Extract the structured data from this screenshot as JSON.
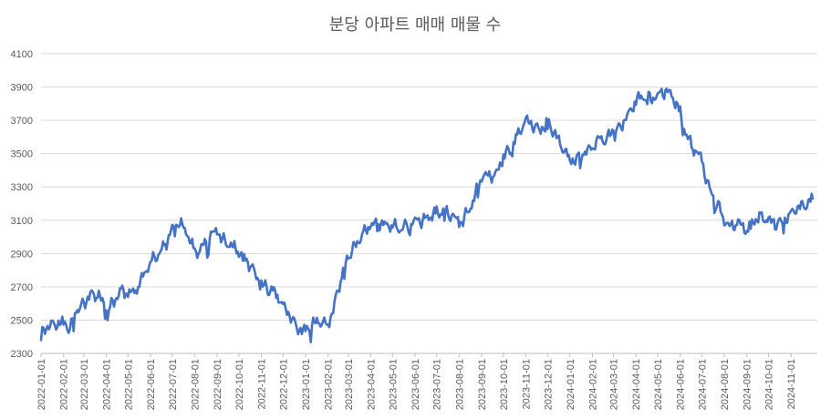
{
  "chart_data": {
    "type": "line",
    "title": "분당 아파트 매매 매물 수",
    "xlabel": "",
    "ylabel": "",
    "ylim": [
      2300,
      4100
    ],
    "yticks": [
      "2300",
      "2500",
      "2700",
      "2900",
      "3100",
      "3300",
      "3500",
      "3700",
      "3900",
      "4100"
    ],
    "grid": true,
    "legend": "none",
    "x_range": [
      "2022-01-01",
      "2024-12-01"
    ],
    "categories": [
      "2022-01-01",
      "2022-02-01",
      "2022-03-01",
      "2022-04-01",
      "2022-05-01",
      "2022-06-01",
      "2022-07-01",
      "2022-08-01",
      "2022-09-01",
      "2022-10-01",
      "2022-11-01",
      "2022-12-01",
      "2023-01-01",
      "2023-02-01",
      "2023-03-01",
      "2023-04-01",
      "2023-05-01",
      "2023-06-01",
      "2023-07-01",
      "2023-08-01",
      "2023-09-01",
      "2023-10-01",
      "2023-11-01",
      "2023-12-01",
      "2024-01-01",
      "2024-02-01",
      "2024-03-01",
      "2024-04-01",
      "2024-05-01",
      "2024-06-01",
      "2024-07-01",
      "2024-08-01",
      "2024-09-01",
      "2024-10-01",
      "2024-11-01"
    ],
    "series": [
      {
        "color": "#4472c4",
        "points": [
          [
            "2022-01-01",
            2420
          ],
          [
            "2022-01-10",
            2450
          ],
          [
            "2022-01-20",
            2480
          ],
          [
            "2022-02-01",
            2480
          ],
          [
            "2022-02-10",
            2450
          ],
          [
            "2022-02-20",
            2560
          ],
          [
            "2022-03-01",
            2600
          ],
          [
            "2022-03-10",
            2660
          ],
          [
            "2022-03-20",
            2650
          ],
          [
            "2022-04-01",
            2570
          ],
          [
            "2022-04-10",
            2600
          ],
          [
            "2022-04-20",
            2680
          ],
          [
            "2022-05-01",
            2660
          ],
          [
            "2022-05-10",
            2670
          ],
          [
            "2022-05-20",
            2760
          ],
          [
            "2022-06-01",
            2850
          ],
          [
            "2022-06-10",
            2880
          ],
          [
            "2022-06-20",
            2940
          ],
          [
            "2022-07-01",
            3050
          ],
          [
            "2022-07-10",
            3080
          ],
          [
            "2022-07-20",
            3040
          ],
          [
            "2022-08-01",
            2900
          ],
          [
            "2022-08-10",
            2930
          ],
          [
            "2022-08-20",
            2990
          ],
          [
            "2022-09-01",
            3040
          ],
          [
            "2022-09-10",
            2980
          ],
          [
            "2022-09-20",
            2940
          ],
          [
            "2022-10-01",
            2920
          ],
          [
            "2022-10-10",
            2880
          ],
          [
            "2022-10-20",
            2800
          ],
          [
            "2022-11-01",
            2720
          ],
          [
            "2022-11-10",
            2680
          ],
          [
            "2022-11-20",
            2690
          ],
          [
            "2022-12-01",
            2580
          ],
          [
            "2022-12-10",
            2520
          ],
          [
            "2022-12-20",
            2460
          ],
          [
            "2023-01-01",
            2430
          ],
          [
            "2023-01-10",
            2470
          ],
          [
            "2023-01-20",
            2490
          ],
          [
            "2023-02-01",
            2470
          ],
          [
            "2023-02-10",
            2600
          ],
          [
            "2023-02-20",
            2760
          ],
          [
            "2023-03-01",
            2880
          ],
          [
            "2023-03-10",
            2950
          ],
          [
            "2023-03-20",
            3010
          ],
          [
            "2023-04-01",
            3070
          ],
          [
            "2023-04-10",
            3090
          ],
          [
            "2023-04-20",
            3080
          ],
          [
            "2023-05-01",
            3070
          ],
          [
            "2023-05-10",
            3040
          ],
          [
            "2023-05-20",
            3060
          ],
          [
            "2023-06-01",
            3100
          ],
          [
            "2023-06-10",
            3090
          ],
          [
            "2023-06-20",
            3120
          ],
          [
            "2023-07-01",
            3140
          ],
          [
            "2023-07-10",
            3150
          ],
          [
            "2023-07-20",
            3140
          ],
          [
            "2023-08-01",
            3080
          ],
          [
            "2023-08-10",
            3130
          ],
          [
            "2023-08-20",
            3200
          ],
          [
            "2023-09-01",
            3370
          ],
          [
            "2023-09-10",
            3380
          ],
          [
            "2023-09-20",
            3360
          ],
          [
            "2023-10-01",
            3490
          ],
          [
            "2023-10-10",
            3520
          ],
          [
            "2023-10-20",
            3610
          ],
          [
            "2023-11-01",
            3700
          ],
          [
            "2023-11-10",
            3660
          ],
          [
            "2023-11-20",
            3650
          ],
          [
            "2023-12-01",
            3690
          ],
          [
            "2023-12-10",
            3620
          ],
          [
            "2023-12-20",
            3550
          ],
          [
            "2024-01-01",
            3460
          ],
          [
            "2024-01-10",
            3470
          ],
          [
            "2024-01-20",
            3490
          ],
          [
            "2024-02-01",
            3540
          ],
          [
            "2024-02-10",
            3600
          ],
          [
            "2024-02-20",
            3580
          ],
          [
            "2024-03-01",
            3640
          ],
          [
            "2024-03-10",
            3660
          ],
          [
            "2024-03-20",
            3730
          ],
          [
            "2024-04-01",
            3820
          ],
          [
            "2024-04-10",
            3840
          ],
          [
            "2024-04-20",
            3830
          ],
          [
            "2024-05-01",
            3850
          ],
          [
            "2024-05-10",
            3870
          ],
          [
            "2024-05-20",
            3860
          ],
          [
            "2024-06-01",
            3740
          ],
          [
            "2024-06-10",
            3600
          ],
          [
            "2024-06-20",
            3530
          ],
          [
            "2024-07-01",
            3460
          ],
          [
            "2024-07-10",
            3300
          ],
          [
            "2024-07-20",
            3220
          ],
          [
            "2024-08-01",
            3100
          ],
          [
            "2024-08-10",
            3070
          ],
          [
            "2024-08-20",
            3080
          ],
          [
            "2024-09-01",
            3050
          ],
          [
            "2024-09-10",
            3100
          ],
          [
            "2024-09-20",
            3120
          ],
          [
            "2024-10-01",
            3100
          ],
          [
            "2024-10-10",
            3070
          ],
          [
            "2024-10-20",
            3100
          ],
          [
            "2024-11-01",
            3130
          ],
          [
            "2024-11-10",
            3170
          ],
          [
            "2024-11-20",
            3190
          ],
          [
            "2024-12-01",
            3230
          ]
        ]
      }
    ]
  }
}
